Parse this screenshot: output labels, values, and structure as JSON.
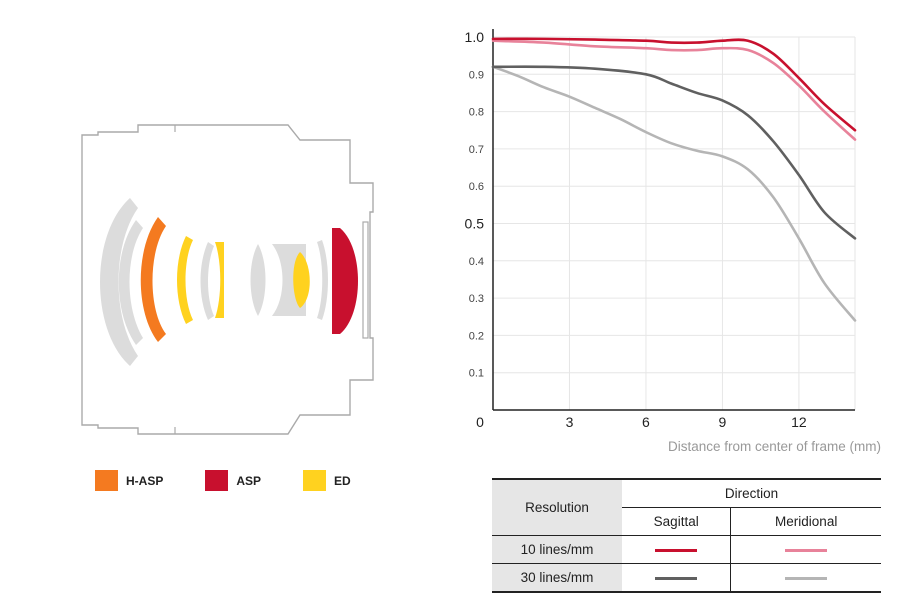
{
  "legend": [
    {
      "label": "H-ASP",
      "color": "#f47a20"
    },
    {
      "label": "ASP",
      "color": "#c8102e"
    },
    {
      "label": "ED",
      "color": "#ffd21f"
    }
  ],
  "chart_data": {
    "type": "line",
    "xlabel": "Distance from center of frame (mm)",
    "xlim": [
      0,
      14.2
    ],
    "ylim": [
      0,
      1.0
    ],
    "x_ticks": [
      "0",
      "3",
      "6",
      "9",
      "12"
    ],
    "y_ticks": [
      "0.1",
      "0.2",
      "0.3",
      "0.4",
      "0.5",
      "0.6",
      "0.7",
      "0.8",
      "0.9",
      "1.0"
    ],
    "grid": true,
    "series": [
      {
        "color": "#c8102e",
        "x": [
          0,
          2,
          4,
          6,
          7,
          8,
          9,
          10,
          11,
          12,
          13,
          14.2
        ],
        "y": [
          0.995,
          0.995,
          0.993,
          0.99,
          0.985,
          0.985,
          0.99,
          0.99,
          0.955,
          0.89,
          0.82,
          0.75
        ]
      },
      {
        "color": "#e8829a",
        "x": [
          0,
          2,
          4,
          6,
          7,
          8,
          9,
          10,
          11,
          12,
          13,
          14.2
        ],
        "y": [
          0.99,
          0.985,
          0.975,
          0.97,
          0.965,
          0.965,
          0.97,
          0.965,
          0.93,
          0.87,
          0.8,
          0.725
        ]
      },
      {
        "color": "#606060",
        "x": [
          0,
          2,
          4,
          6,
          7,
          8,
          9,
          10,
          11,
          12,
          13,
          14.2
        ],
        "y": [
          0.92,
          0.92,
          0.915,
          0.9,
          0.875,
          0.85,
          0.83,
          0.79,
          0.72,
          0.63,
          0.53,
          0.46
        ]
      },
      {
        "color": "#b5b5b5",
        "x": [
          0,
          1,
          2,
          3,
          4,
          5,
          6,
          7,
          8,
          9,
          10,
          11,
          12,
          13,
          14.2
        ],
        "y": [
          0.92,
          0.895,
          0.865,
          0.84,
          0.81,
          0.78,
          0.745,
          0.715,
          0.695,
          0.68,
          0.645,
          0.57,
          0.46,
          0.34,
          0.24
        ]
      }
    ]
  },
  "table": {
    "resolution_header": "Resolution",
    "direction_header": "Direction",
    "sagittal": "Sagittal",
    "meridional": "Meridional",
    "rows": [
      {
        "label": "10 lines/mm",
        "sagittal_color": "#c8102e",
        "meridional_color": "#e8829a"
      },
      {
        "label": "30 lines/mm",
        "sagittal_color": "#606060",
        "meridional_color": "#b5b5b5"
      }
    ]
  }
}
